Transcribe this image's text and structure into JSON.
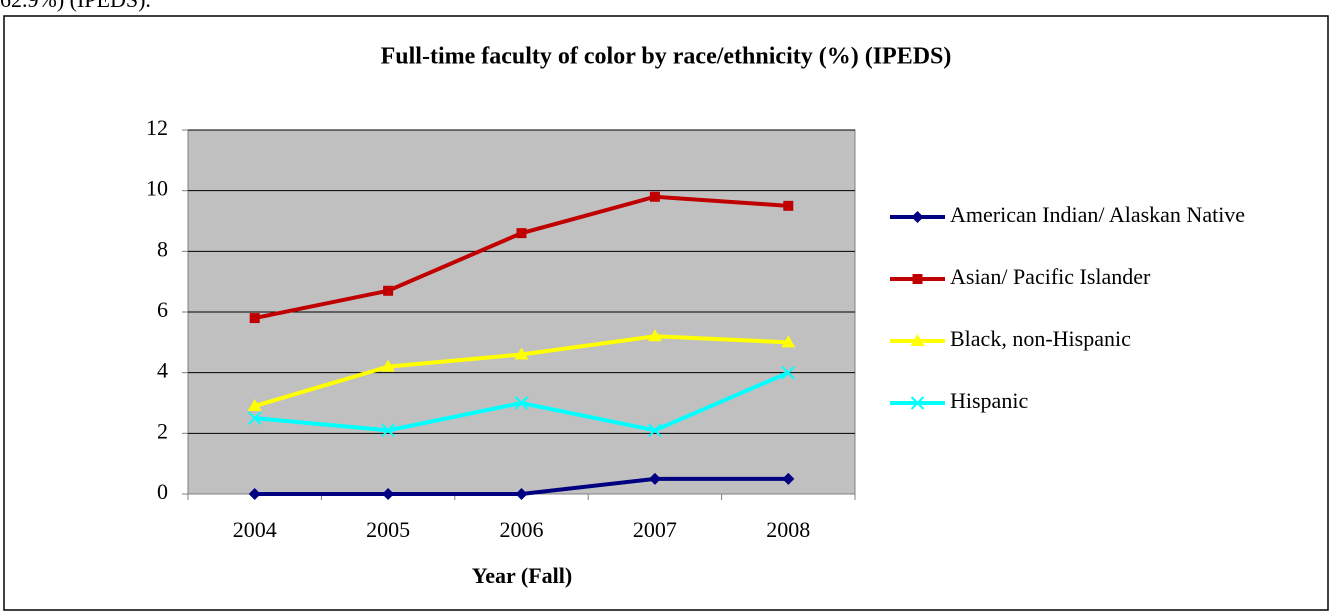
{
  "page_text": "62.9%) (IPEDS).",
  "chart_data": {
    "type": "line",
    "title": "Full-time faculty of color by race/ethnicity (%) (IPEDS)",
    "x_label": "Year (Fall)",
    "categories": [
      "2004",
      "2005",
      "2006",
      "2007",
      "2008"
    ],
    "ylim": [
      0,
      12
    ],
    "yticks": [
      0,
      2,
      4,
      6,
      8,
      10,
      12
    ],
    "grid": true,
    "legend": "right",
    "series": [
      {
        "name": "American Indian/ Alaskan Native",
        "color": "#000080",
        "marker": "diamond",
        "values": [
          0,
          0,
          0,
          0.5,
          0.5
        ]
      },
      {
        "name": "Asian/ Pacific Islander",
        "color": "#c00000",
        "marker": "square",
        "values": [
          5.8,
          6.7,
          8.6,
          9.8,
          9.5
        ]
      },
      {
        "name": "Black, non-Hispanic",
        "color": "#ffff00",
        "marker": "triangle",
        "values": [
          2.9,
          4.2,
          4.6,
          5.2,
          5.0
        ]
      },
      {
        "name": "Hispanic",
        "color": "#00ffff",
        "marker": "x",
        "values": [
          2.5,
          2.1,
          3.0,
          2.1,
          4.0
        ]
      }
    ]
  }
}
